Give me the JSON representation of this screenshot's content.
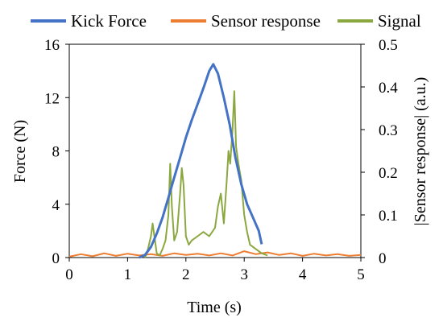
{
  "chart_data": {
    "type": "line",
    "title": "",
    "xlabel": "Time (s)",
    "ylabel_left": "Force (N)",
    "ylabel_right": "|Sensor response| (a.u.)",
    "xlim": [
      0,
      5
    ],
    "ylim_left": [
      0,
      16
    ],
    "ylim_right": [
      0,
      0.5
    ],
    "x_ticks": [
      "0",
      "1",
      "2",
      "3",
      "4",
      "5"
    ],
    "y_left_ticks": [
      "0",
      "4",
      "8",
      "12",
      "16"
    ],
    "y_right_ticks": [
      "0",
      "0.1",
      "0.2",
      "0.3",
      "0.4",
      "0.5"
    ],
    "grid": false,
    "legend_position": "top",
    "series": [
      {
        "name": "Kick Force",
        "axis": "left",
        "color": "#4472C4",
        "points": [
          [
            1.2,
            0
          ],
          [
            1.3,
            0.2
          ],
          [
            1.4,
            0.8
          ],
          [
            1.5,
            1.8
          ],
          [
            1.6,
            3
          ],
          [
            1.7,
            4.5
          ],
          [
            1.8,
            6
          ],
          [
            1.9,
            7.5
          ],
          [
            2.0,
            9
          ],
          [
            2.1,
            10.3
          ],
          [
            2.2,
            11.5
          ],
          [
            2.3,
            12.7
          ],
          [
            2.4,
            14
          ],
          [
            2.47,
            14.5
          ],
          [
            2.55,
            13.8
          ],
          [
            2.65,
            12
          ],
          [
            2.75,
            10
          ],
          [
            2.85,
            7.5
          ],
          [
            2.95,
            5.5
          ],
          [
            3.05,
            4
          ],
          [
            3.15,
            3
          ],
          [
            3.25,
            2
          ],
          [
            3.3,
            1
          ]
        ]
      },
      {
        "name": "Sensor response",
        "axis": "right",
        "color": "#ED7D31",
        "points": [
          [
            0,
            0.002
          ],
          [
            0.2,
            0.008
          ],
          [
            0.4,
            0.003
          ],
          [
            0.6,
            0.01
          ],
          [
            0.8,
            0.004
          ],
          [
            1.0,
            0.009
          ],
          [
            1.2,
            0.005
          ],
          [
            1.4,
            0.008
          ],
          [
            1.6,
            0.004
          ],
          [
            1.8,
            0.01
          ],
          [
            2.0,
            0.006
          ],
          [
            2.2,
            0.009
          ],
          [
            2.4,
            0.005
          ],
          [
            2.6,
            0.01
          ],
          [
            2.8,
            0.005
          ],
          [
            3.0,
            0.015
          ],
          [
            3.2,
            0.008
          ],
          [
            3.4,
            0.012
          ],
          [
            3.6,
            0.006
          ],
          [
            3.8,
            0.01
          ],
          [
            4.0,
            0.004
          ],
          [
            4.2,
            0.009
          ],
          [
            4.4,
            0.005
          ],
          [
            4.6,
            0.008
          ],
          [
            4.8,
            0.004
          ],
          [
            5.0,
            0.006
          ]
        ]
      },
      {
        "name": "Signal",
        "axis": "right",
        "color": "#8BA840",
        "points": [
          [
            1.3,
            0
          ],
          [
            1.35,
            0.02
          ],
          [
            1.4,
            0.05
          ],
          [
            1.43,
            0.08
          ],
          [
            1.47,
            0.04
          ],
          [
            1.5,
            0.01
          ],
          [
            1.55,
            0.005
          ],
          [
            1.6,
            0.02
          ],
          [
            1.65,
            0.04
          ],
          [
            1.7,
            0.1
          ],
          [
            1.73,
            0.22
          ],
          [
            1.76,
            0.12
          ],
          [
            1.8,
            0.04
          ],
          [
            1.85,
            0.06
          ],
          [
            1.9,
            0.15
          ],
          [
            1.93,
            0.21
          ],
          [
            1.96,
            0.17
          ],
          [
            2.0,
            0.05
          ],
          [
            2.05,
            0.03
          ],
          [
            2.1,
            0.04
          ],
          [
            2.2,
            0.05
          ],
          [
            2.3,
            0.06
          ],
          [
            2.4,
            0.05
          ],
          [
            2.5,
            0.07
          ],
          [
            2.55,
            0.12
          ],
          [
            2.6,
            0.15
          ],
          [
            2.65,
            0.08
          ],
          [
            2.7,
            0.18
          ],
          [
            2.73,
            0.25
          ],
          [
            2.76,
            0.22
          ],
          [
            2.8,
            0.3
          ],
          [
            2.83,
            0.39
          ],
          [
            2.86,
            0.26
          ],
          [
            2.9,
            0.22
          ],
          [
            2.95,
            0.18
          ],
          [
            3.0,
            0.1
          ],
          [
            3.05,
            0.06
          ],
          [
            3.1,
            0.03
          ],
          [
            3.2,
            0.02
          ],
          [
            3.3,
            0.01
          ],
          [
            3.4,
            0.005
          ]
        ]
      }
    ]
  }
}
